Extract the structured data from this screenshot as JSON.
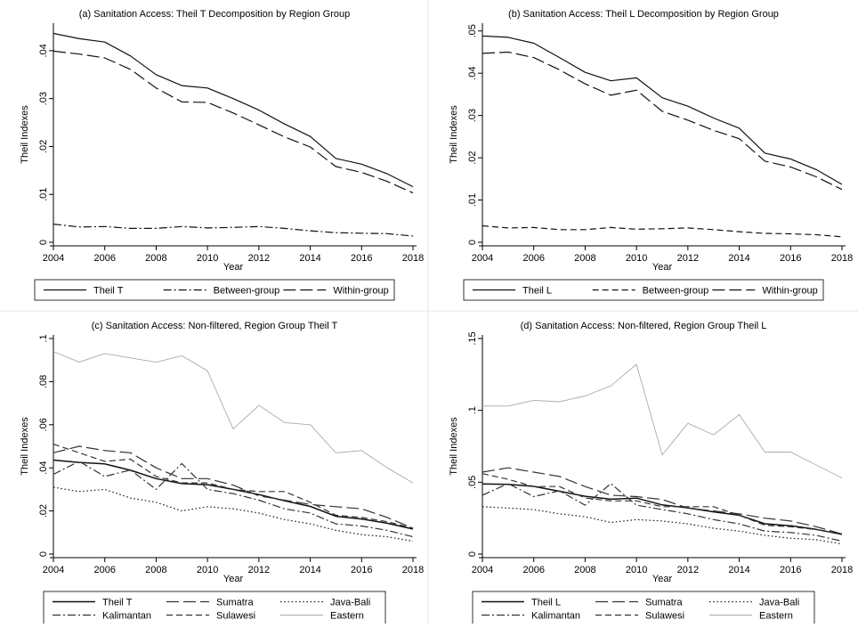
{
  "chart_data": [
    {
      "type": "line",
      "title": "(a) Sanitation Access: Theil T Decomposition by Region Group",
      "xlabel": "Year",
      "ylabel": "Theil Indexes",
      "x": [
        2004,
        2005,
        2006,
        2007,
        2008,
        2009,
        2010,
        2011,
        2012,
        2013,
        2014,
        2015,
        2016,
        2017,
        2018
      ],
      "xticks": [
        "2004",
        "2006",
        "2008",
        "2010",
        "2012",
        "2014",
        "2016",
        "2018"
      ],
      "yticks": [
        "0",
        ".01",
        ".02",
        ".03",
        ".04"
      ],
      "ylim": [
        0,
        0.045
      ],
      "series": [
        {
          "name": "Theil T",
          "style": "solid",
          "values": [
            0.0436,
            0.0425,
            0.0418,
            0.0389,
            0.035,
            0.0327,
            0.0322,
            0.03,
            0.0276,
            0.0247,
            0.0221,
            0.0175,
            0.0163,
            0.0143,
            0.0116
          ]
        },
        {
          "name": "Between-group",
          "style": "dashdot",
          "values": [
            0.0038,
            0.0032,
            0.0033,
            0.0029,
            0.0029,
            0.0033,
            0.003,
            0.0031,
            0.0033,
            0.0029,
            0.0024,
            0.002,
            0.0019,
            0.0018,
            0.0013
          ]
        },
        {
          "name": "Within-group",
          "style": "longdash",
          "values": [
            0.0399,
            0.0393,
            0.0385,
            0.0361,
            0.0322,
            0.0293,
            0.0292,
            0.027,
            0.0245,
            0.022,
            0.0199,
            0.0158,
            0.0146,
            0.0127,
            0.0103
          ]
        }
      ]
    },
    {
      "type": "line",
      "title": "(b) Sanitation Access: Theil L Decomposition by Region Group",
      "xlabel": "Year",
      "ylabel": "Theil Indexes",
      "x": [
        2004,
        2005,
        2006,
        2007,
        2008,
        2009,
        2010,
        2011,
        2012,
        2013,
        2014,
        2015,
        2016,
        2017,
        2018
      ],
      "xticks": [
        "2004",
        "2006",
        "2008",
        "2010",
        "2012",
        "2014",
        "2016",
        "2018"
      ],
      "yticks": [
        "0",
        ".01",
        ".02",
        ".03",
        ".04",
        ".05"
      ],
      "ylim": [
        0,
        0.051
      ],
      "series": [
        {
          "name": "Theil L",
          "style": "solid",
          "values": [
            0.0488,
            0.0485,
            0.0471,
            0.0437,
            0.0402,
            0.0382,
            0.0389,
            0.0342,
            0.0322,
            0.0294,
            0.027,
            0.0211,
            0.0197,
            0.0172,
            0.0137
          ]
        },
        {
          "name": "Between-group",
          "style": "dash",
          "values": [
            0.0039,
            0.0034,
            0.0035,
            0.003,
            0.003,
            0.0035,
            0.0031,
            0.0032,
            0.0034,
            0.003,
            0.0025,
            0.0021,
            0.002,
            0.0018,
            0.0013
          ]
        },
        {
          "name": "Within-group",
          "style": "longdash",
          "values": [
            0.0447,
            0.045,
            0.0437,
            0.0408,
            0.0375,
            0.0348,
            0.036,
            0.031,
            0.0289,
            0.0265,
            0.0245,
            0.0192,
            0.0178,
            0.0155,
            0.0125
          ]
        }
      ]
    },
    {
      "type": "line",
      "title": "(c) Sanitation Access: Non-filtered, Region Group Theil T",
      "xlabel": "Year",
      "ylabel": "Theil Indexes",
      "x": [
        2004,
        2005,
        2006,
        2007,
        2008,
        2009,
        2010,
        2011,
        2012,
        2013,
        2014,
        2015,
        2016,
        2017,
        2018
      ],
      "xticks": [
        "2004",
        "2006",
        "2008",
        "2010",
        "2012",
        "2014",
        "2016",
        "2018"
      ],
      "yticks": [
        "0",
        ".02",
        ".04",
        ".06",
        ".08",
        ".1"
      ],
      "ylim": [
        0,
        0.1
      ],
      "series": [
        {
          "name": "Theil T",
          "style": "solid",
          "width": 1.5,
          "color": "#111111",
          "values": [
            0.0436,
            0.0425,
            0.0418,
            0.0389,
            0.035,
            0.0327,
            0.0322,
            0.03,
            0.0276,
            0.0247,
            0.0221,
            0.0175,
            0.0163,
            0.0143,
            0.0116
          ]
        },
        {
          "name": "Sumatra",
          "style": "longdash",
          "color": "#333333",
          "values": [
            0.047,
            0.05,
            0.048,
            0.047,
            0.04,
            0.035,
            0.035,
            0.032,
            0.027,
            0.025,
            0.023,
            0.022,
            0.021,
            0.017,
            0.012
          ]
        },
        {
          "name": "Java-Bali",
          "style": "dot",
          "color": "#222222",
          "values": [
            0.031,
            0.029,
            0.03,
            0.026,
            0.024,
            0.02,
            0.022,
            0.021,
            0.019,
            0.016,
            0.014,
            0.011,
            0.009,
            0.008,
            0.006
          ]
        },
        {
          "name": "Kalimantan",
          "style": "dashdot",
          "color": "#333333",
          "values": [
            0.037,
            0.043,
            0.036,
            0.039,
            0.03,
            0.042,
            0.03,
            0.028,
            0.025,
            0.021,
            0.019,
            0.014,
            0.013,
            0.011,
            0.008
          ]
        },
        {
          "name": "Sulawesi",
          "style": "dash",
          "color": "#333333",
          "values": [
            0.051,
            0.047,
            0.043,
            0.044,
            0.036,
            0.033,
            0.033,
            0.03,
            0.029,
            0.029,
            0.024,
            0.018,
            0.017,
            0.015,
            0.012
          ]
        },
        {
          "name": "Eastern",
          "style": "solid",
          "width": 0.9,
          "color": "#aaaaaa",
          "values": [
            0.094,
            0.089,
            0.093,
            0.091,
            0.089,
            0.092,
            0.085,
            0.058,
            0.069,
            0.061,
            0.06,
            0.047,
            0.048,
            0.04,
            0.033
          ]
        }
      ]
    },
    {
      "type": "line",
      "title": "(d) Sanitation Access: Non-filtered, Region Group Theil L",
      "xlabel": "Year",
      "ylabel": "Theil Indexes",
      "x": [
        2004,
        2005,
        2006,
        2007,
        2008,
        2009,
        2010,
        2011,
        2012,
        2013,
        2014,
        2015,
        2016,
        2017,
        2018
      ],
      "xticks": [
        "2004",
        "2006",
        "2008",
        "2010",
        "2012",
        "2014",
        "2016",
        "2018"
      ],
      "yticks": [
        "0",
        ".05",
        ".1",
        ".15"
      ],
      "ylim": [
        0,
        0.15
      ],
      "series": [
        {
          "name": "Theil L",
          "style": "solid",
          "width": 1.5,
          "color": "#111111",
          "values": [
            0.0488,
            0.0485,
            0.0471,
            0.0437,
            0.0402,
            0.0382,
            0.0389,
            0.0342,
            0.0322,
            0.0294,
            0.027,
            0.0211,
            0.0197,
            0.0172,
            0.0137
          ]
        },
        {
          "name": "Sumatra",
          "style": "longdash",
          "color": "#333333",
          "values": [
            0.057,
            0.06,
            0.057,
            0.054,
            0.047,
            0.041,
            0.04,
            0.038,
            0.032,
            0.03,
            0.028,
            0.025,
            0.023,
            0.019,
            0.014
          ]
        },
        {
          "name": "Java-Bali",
          "style": "dot",
          "color": "#222222",
          "values": [
            0.033,
            0.032,
            0.031,
            0.028,
            0.026,
            0.022,
            0.024,
            0.023,
            0.021,
            0.018,
            0.016,
            0.013,
            0.011,
            0.01,
            0.007
          ]
        },
        {
          "name": "Kalimantan",
          "style": "dashdot",
          "color": "#333333",
          "values": [
            0.041,
            0.049,
            0.04,
            0.044,
            0.034,
            0.049,
            0.034,
            0.031,
            0.028,
            0.024,
            0.021,
            0.016,
            0.015,
            0.013,
            0.009
          ]
        },
        {
          "name": "Sulawesi",
          "style": "dash",
          "color": "#333333",
          "values": [
            0.056,
            0.052,
            0.047,
            0.047,
            0.039,
            0.037,
            0.037,
            0.033,
            0.033,
            0.033,
            0.027,
            0.02,
            0.019,
            0.017,
            0.014
          ]
        },
        {
          "name": "Eastern",
          "style": "solid",
          "width": 0.9,
          "color": "#aaaaaa",
          "values": [
            0.103,
            0.103,
            0.107,
            0.106,
            0.11,
            0.117,
            0.132,
            0.069,
            0.091,
            0.083,
            0.097,
            0.071,
            0.071,
            0.062,
            0.053
          ]
        }
      ]
    }
  ]
}
